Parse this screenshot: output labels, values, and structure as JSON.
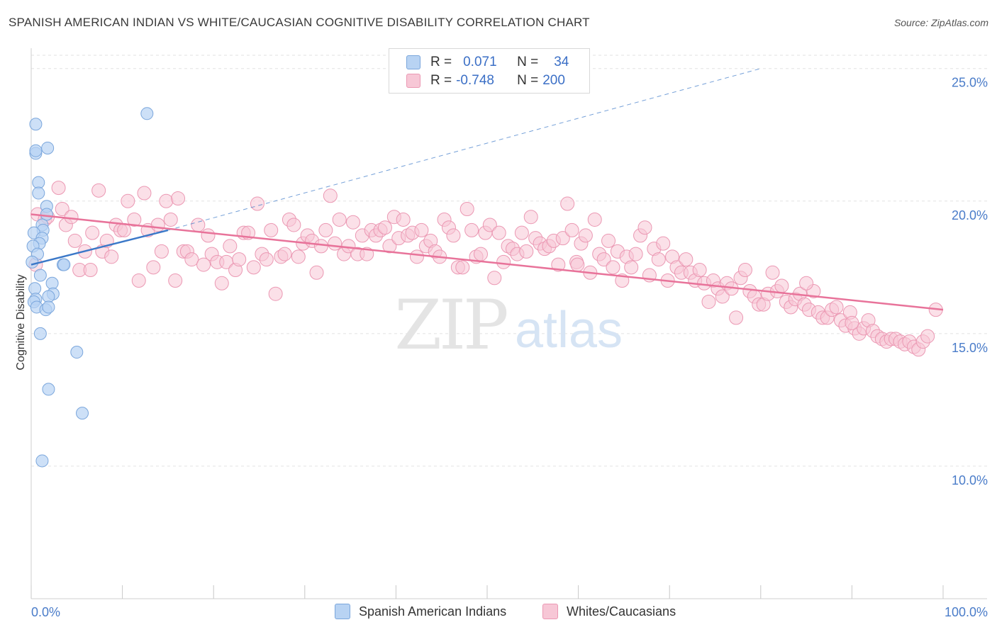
{
  "title": "SPANISH AMERICAN INDIAN VS WHITE/CAUCASIAN COGNITIVE DISABILITY CORRELATION CHART",
  "source": "Source: ZipAtlas.com",
  "watermark": {
    "zip": "ZIP",
    "atlas": "atlas"
  },
  "legend_top": {
    "row1": {
      "r_label": "R =",
      "r_value": "0.071",
      "n_label": "N =",
      "n_value": "34"
    },
    "row2": {
      "r_label": "R =",
      "r_value": "-0.748",
      "n_label": "N =",
      "n_value": "200"
    }
  },
  "legend_bottom": {
    "series1": "Spanish American Indians",
    "series2": "Whites/Caucasians"
  },
  "colors": {
    "blue_fill": "#b8d3f3",
    "blue_stroke": "#7aa6dc",
    "blue_line": "#3b78c8",
    "pink_fill": "#f7c7d6",
    "pink_stroke": "#eb98b3",
    "pink_line": "#e8739a",
    "tick_text": "#4a7cc9"
  },
  "chart_data": {
    "type": "scatter",
    "title": "SPANISH AMERICAN INDIAN VS WHITE/CAUCASIAN COGNITIVE DISABILITY CORRELATION CHART",
    "xlabel": "",
    "ylabel": "Cognitive Disability",
    "xlim": [
      0,
      100
    ],
    "ylim": [
      5,
      25.5
    ],
    "x_ticks": [
      "0.0%",
      "100.0%"
    ],
    "y_ticks": [
      {
        "value": 10,
        "label": "10.0%"
      },
      {
        "value": 15,
        "label": "15.0%"
      },
      {
        "value": 20,
        "label": "20.0%"
      },
      {
        "value": 25,
        "label": "25.0%"
      }
    ],
    "grid": true,
    "series": [
      {
        "name": "Spanish American Indians",
        "color": "#b8d3f3",
        "r": 0.071,
        "n": 34,
        "trend": {
          "x1": 0,
          "y1": 17.6,
          "x2": 15,
          "y2": 18.9,
          "dashed_to_x": 80,
          "dashed_to_y": 25
        },
        "points": [
          [
            0.5,
            22.9
          ],
          [
            0.5,
            21.8
          ],
          [
            0.5,
            21.9
          ],
          [
            1.8,
            22.0
          ],
          [
            0.8,
            20.7
          ],
          [
            0.8,
            20.3
          ],
          [
            1.7,
            19.8
          ],
          [
            1.7,
            19.5
          ],
          [
            1.2,
            19.1
          ],
          [
            1.3,
            18.9
          ],
          [
            0.3,
            18.8
          ],
          [
            1.2,
            18.6
          ],
          [
            0.9,
            18.4
          ],
          [
            0.2,
            18.3
          ],
          [
            0.7,
            18.0
          ],
          [
            0.1,
            17.7
          ],
          [
            3.5,
            17.6
          ],
          [
            3.6,
            17.6
          ],
          [
            1.0,
            17.2
          ],
          [
            2.3,
            16.9
          ],
          [
            0.4,
            16.7
          ],
          [
            2.4,
            16.5
          ],
          [
            1.9,
            16.4
          ],
          [
            0.5,
            16.3
          ],
          [
            0.3,
            16.2
          ],
          [
            0.6,
            16.0
          ],
          [
            1.6,
            15.9
          ],
          [
            1.9,
            16.0
          ],
          [
            1.0,
            15.0
          ],
          [
            5.0,
            14.3
          ],
          [
            1.9,
            12.9
          ],
          [
            5.6,
            12.0
          ],
          [
            1.2,
            10.2
          ],
          [
            12.7,
            23.3
          ]
        ]
      },
      {
        "name": "Whites/Caucasians",
        "color": "#f7c7d6",
        "r": -0.748,
        "n": 200,
        "trend": {
          "x1": 0,
          "y1": 19.5,
          "x2": 100,
          "y2": 15.9
        },
        "points": [
          [
            0.5,
            17.6
          ],
          [
            0.7,
            19.5
          ],
          [
            1.5,
            19.3
          ],
          [
            1.8,
            19.4
          ],
          [
            3.0,
            20.5
          ],
          [
            3.4,
            19.7
          ],
          [
            3.8,
            19.1
          ],
          [
            4.4,
            19.4
          ],
          [
            4.8,
            18.5
          ],
          [
            5.3,
            17.4
          ],
          [
            5.9,
            18.1
          ],
          [
            6.5,
            17.4
          ],
          [
            6.7,
            18.8
          ],
          [
            7.4,
            20.4
          ],
          [
            7.8,
            18.1
          ],
          [
            8.3,
            18.5
          ],
          [
            8.8,
            17.9
          ],
          [
            9.3,
            19.1
          ],
          [
            9.8,
            18.9
          ],
          [
            10.2,
            18.9
          ],
          [
            10.6,
            20.0
          ],
          [
            11.3,
            19.3
          ],
          [
            11.8,
            17.0
          ],
          [
            12.4,
            20.3
          ],
          [
            12.8,
            18.9
          ],
          [
            13.4,
            17.5
          ],
          [
            13.9,
            19.1
          ],
          [
            14.3,
            18.1
          ],
          [
            14.8,
            20.0
          ],
          [
            15.3,
            19.3
          ],
          [
            15.8,
            17.0
          ],
          [
            16.1,
            20.1
          ],
          [
            16.7,
            18.1
          ],
          [
            17.1,
            18.1
          ],
          [
            17.6,
            17.8
          ],
          [
            18.3,
            19.1
          ],
          [
            18.9,
            17.6
          ],
          [
            19.4,
            18.7
          ],
          [
            19.8,
            18.0
          ],
          [
            20.4,
            17.7
          ],
          [
            20.9,
            16.9
          ],
          [
            21.4,
            17.7
          ],
          [
            21.8,
            18.3
          ],
          [
            22.4,
            17.4
          ],
          [
            22.8,
            17.8
          ],
          [
            23.3,
            18.8
          ],
          [
            23.8,
            18.8
          ],
          [
            24.4,
            17.5
          ],
          [
            24.8,
            19.9
          ],
          [
            25.3,
            18.0
          ],
          [
            25.8,
            17.8
          ],
          [
            26.3,
            18.9
          ],
          [
            26.8,
            16.5
          ],
          [
            27.4,
            17.9
          ],
          [
            27.8,
            18.0
          ],
          [
            28.3,
            19.3
          ],
          [
            28.8,
            19.1
          ],
          [
            29.3,
            17.9
          ],
          [
            29.8,
            18.4
          ],
          [
            30.3,
            18.7
          ],
          [
            30.8,
            18.5
          ],
          [
            31.3,
            17.3
          ],
          [
            31.8,
            18.3
          ],
          [
            32.3,
            18.9
          ],
          [
            32.8,
            20.2
          ],
          [
            33.3,
            18.4
          ],
          [
            33.8,
            19.3
          ],
          [
            34.3,
            18.0
          ],
          [
            34.8,
            18.3
          ],
          [
            35.3,
            19.2
          ],
          [
            35.8,
            18.0
          ],
          [
            36.3,
            18.7
          ],
          [
            36.8,
            18.0
          ],
          [
            37.3,
            18.9
          ],
          [
            37.8,
            18.7
          ],
          [
            38.3,
            18.9
          ],
          [
            38.8,
            19.0
          ],
          [
            39.3,
            18.3
          ],
          [
            39.8,
            19.4
          ],
          [
            40.3,
            18.6
          ],
          [
            40.8,
            19.3
          ],
          [
            41.3,
            18.7
          ],
          [
            41.8,
            18.8
          ],
          [
            42.3,
            17.9
          ],
          [
            42.8,
            18.9
          ],
          [
            43.3,
            18.3
          ],
          [
            43.8,
            18.5
          ],
          [
            44.3,
            18.1
          ],
          [
            44.8,
            17.9
          ],
          [
            45.3,
            19.3
          ],
          [
            45.8,
            19.0
          ],
          [
            46.3,
            18.7
          ],
          [
            46.8,
            17.5
          ],
          [
            47.3,
            17.5
          ],
          [
            47.8,
            19.7
          ],
          [
            48.3,
            18.9
          ],
          [
            48.8,
            17.9
          ],
          [
            49.3,
            18.0
          ],
          [
            49.8,
            18.8
          ],
          [
            50.3,
            19.1
          ],
          [
            50.8,
            17.1
          ],
          [
            51.3,
            18.8
          ],
          [
            51.8,
            17.7
          ],
          [
            52.3,
            18.3
          ],
          [
            52.8,
            18.2
          ],
          [
            53.3,
            18.0
          ],
          [
            53.8,
            18.8
          ],
          [
            54.3,
            18.1
          ],
          [
            54.8,
            19.4
          ],
          [
            55.3,
            18.6
          ],
          [
            55.8,
            18.4
          ],
          [
            56.3,
            18.2
          ],
          [
            56.8,
            18.3
          ],
          [
            57.3,
            18.5
          ],
          [
            57.8,
            17.6
          ],
          [
            58.3,
            18.6
          ],
          [
            58.8,
            19.9
          ],
          [
            59.3,
            18.9
          ],
          [
            59.8,
            17.7
          ],
          [
            60.3,
            18.4
          ],
          [
            60.8,
            18.7
          ],
          [
            61.3,
            17.3
          ],
          [
            61.8,
            19.3
          ],
          [
            62.3,
            18.0
          ],
          [
            62.8,
            17.8
          ],
          [
            63.3,
            18.5
          ],
          [
            63.8,
            17.5
          ],
          [
            64.3,
            18.1
          ],
          [
            64.8,
            17.0
          ],
          [
            65.3,
            17.9
          ],
          [
            65.8,
            17.5
          ],
          [
            66.3,
            18.0
          ],
          [
            66.8,
            18.7
          ],
          [
            67.3,
            19.0
          ],
          [
            67.8,
            17.2
          ],
          [
            68.3,
            18.2
          ],
          [
            68.8,
            17.8
          ],
          [
            69.3,
            18.4
          ],
          [
            69.8,
            17.0
          ],
          [
            70.3,
            17.9
          ],
          [
            70.8,
            17.5
          ],
          [
            71.3,
            17.3
          ],
          [
            71.8,
            17.8
          ],
          [
            72.3,
            17.3
          ],
          [
            72.8,
            17.0
          ],
          [
            73.3,
            17.4
          ],
          [
            73.8,
            16.9
          ],
          [
            74.3,
            16.2
          ],
          [
            74.8,
            17.0
          ],
          [
            75.3,
            16.7
          ],
          [
            75.8,
            16.4
          ],
          [
            76.3,
            16.9
          ],
          [
            76.8,
            16.7
          ],
          [
            77.3,
            15.6
          ],
          [
            77.8,
            17.1
          ],
          [
            78.3,
            17.4
          ],
          [
            78.8,
            16.6
          ],
          [
            79.3,
            16.4
          ],
          [
            79.8,
            16.1
          ],
          [
            80.3,
            16.1
          ],
          [
            80.8,
            16.5
          ],
          [
            81.3,
            17.3
          ],
          [
            81.8,
            16.6
          ],
          [
            82.3,
            16.8
          ],
          [
            82.8,
            16.2
          ],
          [
            83.3,
            16.0
          ],
          [
            83.8,
            16.3
          ],
          [
            84.3,
            16.5
          ],
          [
            84.8,
            16.1
          ],
          [
            85.3,
            15.9
          ],
          [
            85.8,
            16.6
          ],
          [
            86.3,
            15.8
          ],
          [
            86.8,
            15.6
          ],
          [
            87.3,
            15.6
          ],
          [
            87.8,
            15.9
          ],
          [
            88.3,
            16.0
          ],
          [
            88.8,
            15.5
          ],
          [
            89.3,
            15.3
          ],
          [
            89.8,
            15.8
          ],
          [
            90.3,
            15.2
          ],
          [
            90.8,
            15.0
          ],
          [
            91.3,
            15.2
          ],
          [
            91.8,
            15.5
          ],
          [
            92.3,
            15.1
          ],
          [
            92.8,
            14.9
          ],
          [
            93.3,
            14.8
          ],
          [
            93.8,
            14.7
          ],
          [
            94.3,
            14.8
          ],
          [
            94.8,
            14.8
          ],
          [
            95.3,
            14.7
          ],
          [
            95.8,
            14.6
          ],
          [
            96.3,
            14.7
          ],
          [
            96.8,
            14.5
          ],
          [
            97.3,
            14.4
          ],
          [
            97.8,
            14.7
          ],
          [
            98.3,
            14.9
          ],
          [
            99.2,
            15.9
          ],
          [
            59.9,
            17.6
          ],
          [
            85.0,
            16.9
          ],
          [
            90.0,
            15.4
          ]
        ]
      }
    ]
  }
}
